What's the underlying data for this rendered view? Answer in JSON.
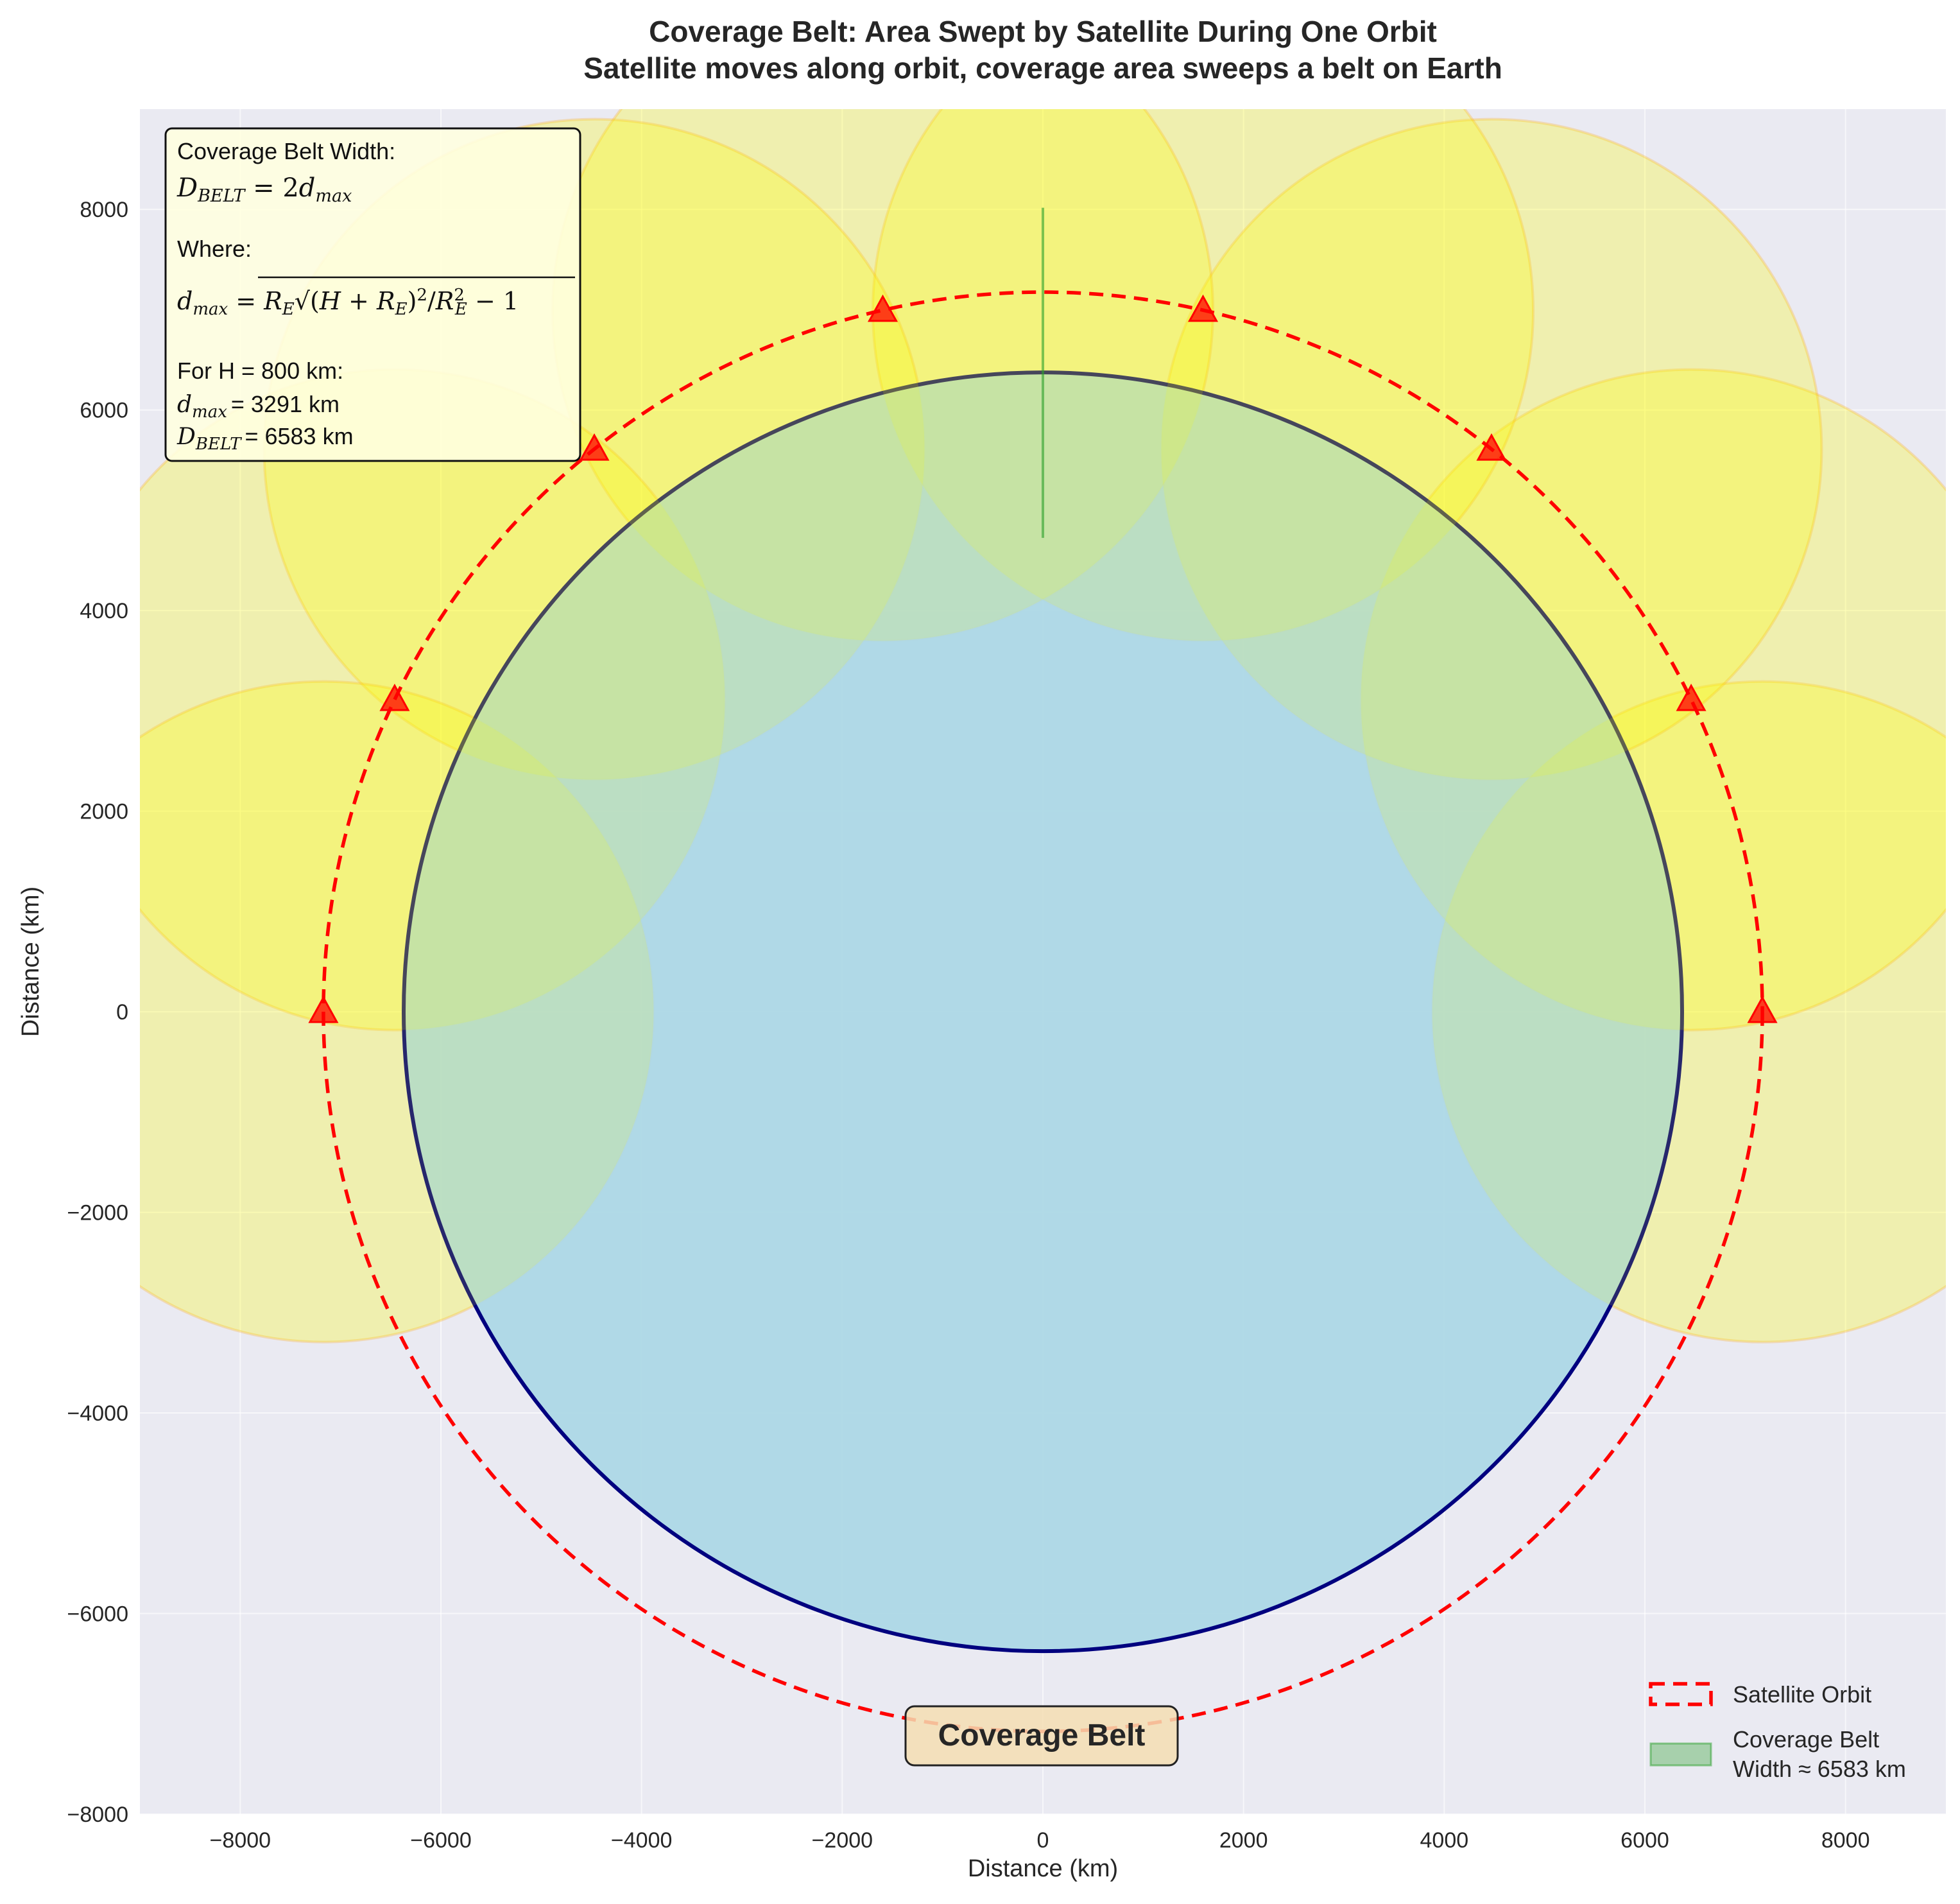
{
  "chart_data": {
    "type": "diagram-plot",
    "title": "Coverage Belt: Area Swept by Satellite During One Orbit",
    "subtitle": "Satellite moves along orbit, coverage area sweeps a belt on Earth",
    "xlabel": "Distance (km)",
    "ylabel": "Distance (km)",
    "xlim": [
      -9000,
      9000
    ],
    "ylim": [
      -8000,
      9000
    ],
    "xticks": [
      -8000,
      -6000,
      -4000,
      -2000,
      0,
      2000,
      4000,
      6000,
      8000
    ],
    "yticks": [
      -8000,
      -6000,
      -4000,
      -2000,
      0,
      2000,
      4000,
      6000,
      8000
    ],
    "grid": true,
    "earth": {
      "radius_km": 6371,
      "fill": "#add8e6",
      "edge": "#00007f"
    },
    "orbit": {
      "radius_km": 7171,
      "color": "#ff0000",
      "style": "dashed"
    },
    "coverage_radius_km": 3291,
    "satellites": [
      {
        "x": 7171,
        "y": 0
      },
      {
        "x": 6461,
        "y": 3111
      },
      {
        "x": 4471,
        "y": 5607
      },
      {
        "x": 1596,
        "y": 6991
      },
      {
        "x": -1596,
        "y": 6991
      },
      {
        "x": -4471,
        "y": 5607
      },
      {
        "x": -6461,
        "y": 3111
      },
      {
        "x": -7171,
        "y": 0
      }
    ],
    "belt_segment": {
      "x": 0,
      "y_from": 4725,
      "y_to": 8017
    },
    "colors": {
      "coverage_fill": "#ffff00",
      "coverage_edge": "#ffa500",
      "marker": "#ff0000",
      "belt": "#2ca02c",
      "axes_bg": "#eaeaf2",
      "info_box_bg": "#ffffe0",
      "label_box_bg": "#f5deb3"
    },
    "info_box": {
      "line1": "Coverage Belt Width:",
      "formula1": "D_BELT = 2d_max",
      "line_where": "Where:",
      "formula2": "d_max = R_E √((H + R_E)²/R_E² − 1)",
      "line_for": "For H = 800 km:",
      "line_dmax_value": "= 3291 km",
      "line_dbelt_value": "= 6583 km"
    },
    "belt_label": "Coverage Belt",
    "legend": {
      "position": "lower-right",
      "entries": [
        {
          "label": "Satellite Orbit"
        },
        {
          "label_line1": "Coverage Belt",
          "label_line2": "Width ≈ 6583 km"
        }
      ]
    }
  }
}
